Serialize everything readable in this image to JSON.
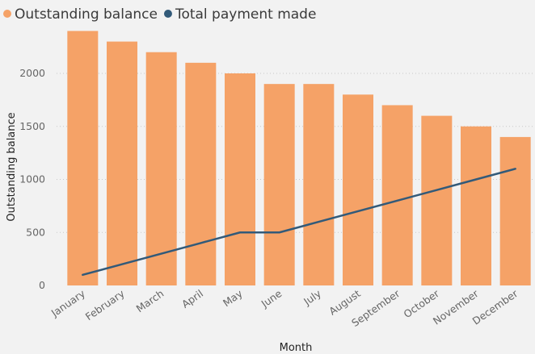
{
  "chart_data": {
    "type": "bar",
    "categories": [
      "January",
      "February",
      "March",
      "April",
      "May",
      "June",
      "July",
      "August",
      "September",
      "October",
      "November",
      "December"
    ],
    "series": [
      {
        "name": "Outstanding balance",
        "type": "bar",
        "color": "#f5a267",
        "values": [
          2400,
          2300,
          2200,
          2100,
          2000,
          1900,
          1900,
          1800,
          1700,
          1600,
          1500,
          1400
        ]
      },
      {
        "name": "Total payment made",
        "type": "line",
        "color": "#325a79",
        "values": [
          100,
          200,
          300,
          400,
          500,
          500,
          600,
          700,
          800,
          900,
          1000,
          1100
        ]
      }
    ],
    "xlabel": "Month",
    "ylabel": "Outstanding balance",
    "ylim": [
      0,
      2500
    ],
    "yticks": [
      0,
      500,
      1000,
      1500,
      2000
    ],
    "legend_position": "top-left",
    "grid": true
  }
}
